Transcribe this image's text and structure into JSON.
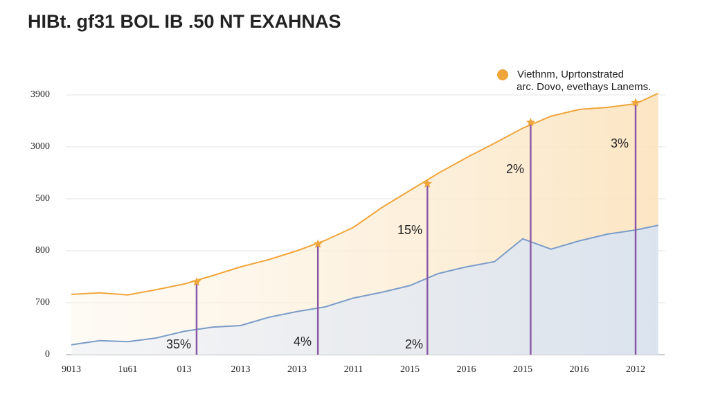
{
  "chart_data": {
    "type": "line",
    "title": "HIBt. gf31 BOL IB .50 NT EXAHNAS",
    "y_axis_labels": [
      "0",
      "700",
      "800",
      "500",
      "3000",
      "3900"
    ],
    "ylim": [
      0,
      5.1
    ],
    "xlim": [
      0,
      10.4
    ],
    "categories": [
      "9013",
      "1u61",
      "013",
      "2013",
      "2013",
      "2011",
      "2015",
      "2016",
      "2015",
      "2016",
      "2012"
    ],
    "x": [
      0,
      0.5,
      1,
      1.5,
      2,
      2.5,
      3,
      3.5,
      4,
      4.5,
      5,
      5.5,
      6,
      6.5,
      7,
      7.5,
      8,
      8.5,
      9,
      9.5,
      10,
      10.4
    ],
    "series": [
      {
        "color": "#f0a53a",
        "values": [
          1.16,
          1.19,
          1.15,
          1.25,
          1.36,
          1.52,
          1.69,
          1.83,
          2.0,
          2.2,
          2.45,
          2.83,
          3.16,
          3.49,
          3.79,
          4.07,
          4.36,
          4.59,
          4.72,
          4.76,
          4.83,
          5.03
        ]
      },
      {
        "color": "#7b9cc8",
        "values": [
          0.19,
          0.27,
          0.25,
          0.32,
          0.45,
          0.53,
          0.56,
          0.72,
          0.83,
          0.92,
          1.09,
          1.2,
          1.33,
          1.56,
          1.69,
          1.79,
          2.23,
          2.03,
          2.19,
          2.32,
          2.4,
          2.49
        ]
      }
    ],
    "markers": {
      "x": [
        2.22,
        4.37,
        6.31,
        8.14,
        10.0
      ],
      "values": [
        1.4,
        2.13,
        3.29,
        4.47,
        4.85
      ],
      "color": "#f0a53a",
      "line_color": "#8a5aa8"
    },
    "annotations": [
      "35%",
      "4%",
      "15%",
      "2%",
      "2%",
      "3%"
    ],
    "legend": {
      "color": "#f0a53a",
      "lines": [
        "Viethnm, Uprtonstrated",
        "arc. Dovo, evethays Lanems."
      ]
    }
  }
}
